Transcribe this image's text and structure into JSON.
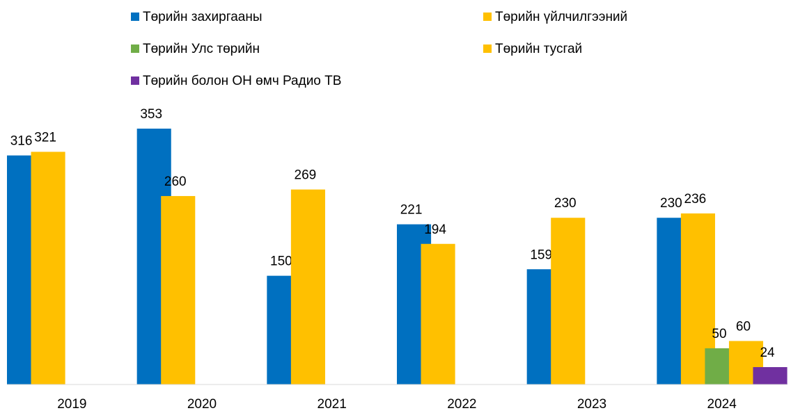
{
  "chart_data": {
    "type": "bar",
    "categories": [
      "2019",
      "2020",
      "2021",
      "2022",
      "2023",
      "2024"
    ],
    "series": [
      {
        "name": "Төрийн захиргааны",
        "color": "#0070c0",
        "values": [
          316,
          353,
          150,
          221,
          159,
          230
        ]
      },
      {
        "name": "Төрийн үйлчилгээний",
        "color": "#ffc000",
        "values": [
          321,
          260,
          269,
          194,
          230,
          236
        ]
      },
      {
        "name": "Төрийн Улс төрийн",
        "color": "#70ad47",
        "values": [
          null,
          null,
          null,
          null,
          null,
          50
        ]
      },
      {
        "name": "Төрийн тусгай",
        "color": "#ffc000",
        "values": [
          null,
          null,
          null,
          null,
          null,
          60
        ]
      },
      {
        "name": "Төрийн болон ОН өмч Радио ТВ",
        "color": "#7030a0",
        "values": [
          null,
          null,
          null,
          null,
          null,
          24
        ]
      }
    ],
    "ylim": [
      0,
      400
    ],
    "legend": "top"
  }
}
